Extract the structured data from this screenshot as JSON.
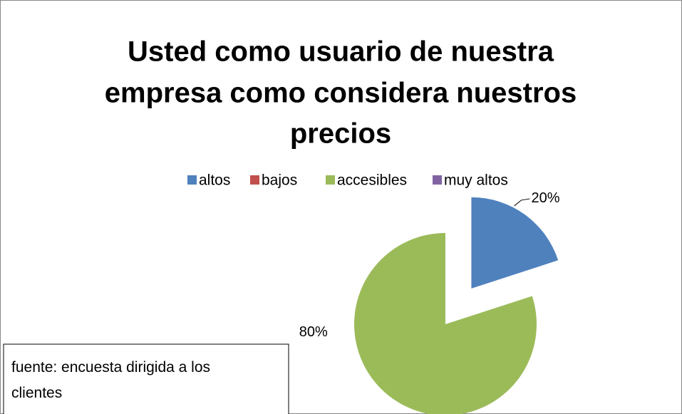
{
  "chart_data": {
    "type": "pie",
    "title_lines": [
      "Usted como usuario de nuestra",
      "empresa como considera nuestros",
      "precios"
    ],
    "categories": [
      "altos",
      "bajos",
      "accesibles",
      "muy altos"
    ],
    "values": [
      20,
      0,
      80,
      0
    ],
    "value_labels": [
      "20%",
      null,
      "80%",
      null
    ],
    "colors": [
      "#4f81bd",
      "#c0504d",
      "#9bbb59",
      "#8064a2"
    ],
    "explode": [
      true,
      false,
      false,
      false
    ],
    "legend": "top",
    "note": "fuente: encuesta dirigida a los clientes"
  }
}
